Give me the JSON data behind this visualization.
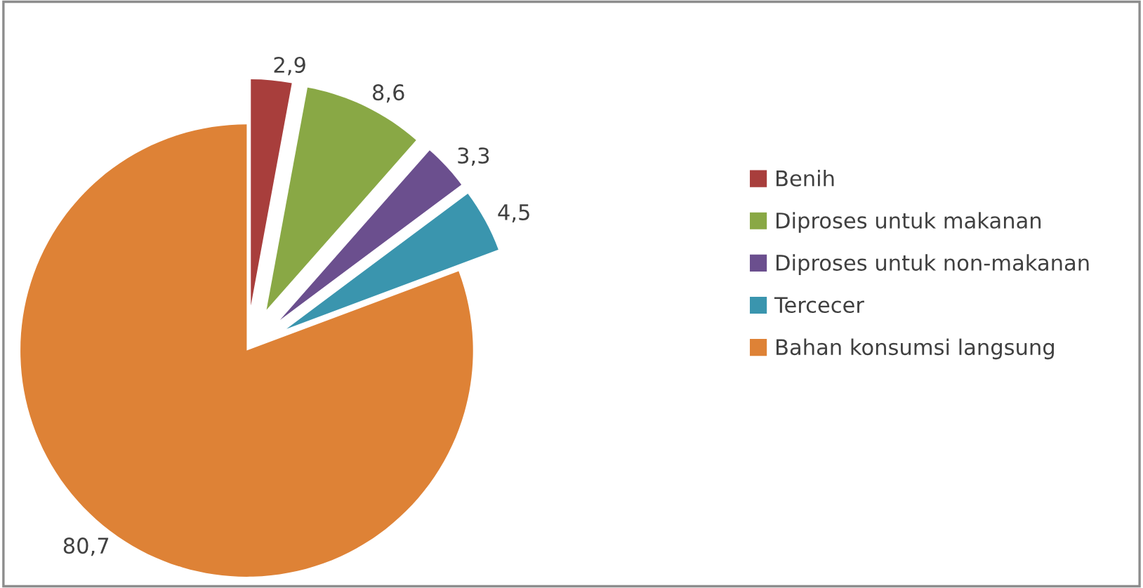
{
  "chart_data": {
    "type": "pie",
    "categories": [
      "Benih",
      "Diproses untuk makanan",
      "Diproses untuk non-makanan",
      "Tercecer",
      "Bahan konsumsi langsung"
    ],
    "values": [
      2.9,
      8.6,
      3.3,
      4.5,
      80.7
    ],
    "value_labels": [
      "2,9",
      "8,6",
      "3,3",
      "4,5",
      "80,7"
    ],
    "colors": [
      "#a83e3c",
      "#89a845",
      "#6b4f8e",
      "#3a95ae",
      "#de8236"
    ],
    "legend": "right"
  }
}
